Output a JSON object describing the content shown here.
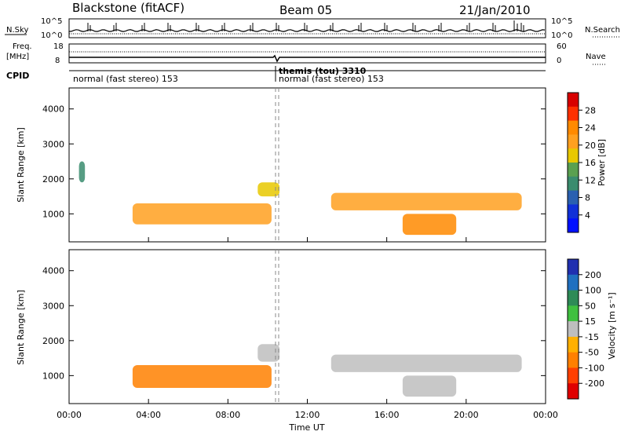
{
  "header": {
    "title": "Blackstone (fitACF)",
    "beam": "Beam 05",
    "date": "21/Jan/2010"
  },
  "top_panels": {
    "nsky_label": "N.Sky",
    "nsky_ticks": [
      "10^5",
      "10^0"
    ],
    "nsearch_label": "N.Search",
    "nsearch_ticks": [
      "10^5",
      "10^0"
    ],
    "freq_label_1": "Freq.",
    "freq_label_2": "[MHz]",
    "freq_ticks": [
      "18",
      "8"
    ],
    "nave_label": "Nave",
    "nave_ticks": [
      "60",
      "0"
    ],
    "cpid_label": "CPID",
    "cpid_left": "normal (fast stereo) 153",
    "cpid_mid_1": "themis (tou) 3310",
    "cpid_mid_2": "normal (fast stereo) 153"
  },
  "power_colorbar": {
    "label": "Power [dB]",
    "ticks": [
      "28",
      "24",
      "20",
      "16",
      "12",
      "8",
      "4"
    ],
    "colors": [
      "#d80000",
      "#ff3000",
      "#ff8a00",
      "#ffa020",
      "#e8c800",
      "#5aa050",
      "#3a8c6e",
      "#2a60b0",
      "#1030d8",
      "#0010ff"
    ]
  },
  "velocity_colorbar": {
    "label": "Velocity [m s⁻¹]",
    "ticks": [
      "200",
      "100",
      "50",
      "15",
      "-15",
      "-50",
      "-100",
      "-200"
    ],
    "colors": [
      "#2030b0",
      "#2070c0",
      "#2e8b57",
      "#40c040",
      "#bebebe",
      "#ffb000",
      "#ff8000",
      "#ff4000",
      "#e00000"
    ]
  },
  "chart_data": [
    {
      "type": "heatmap",
      "name": "Power",
      "ylabel": "Slant Range [km]",
      "yticks": [
        1000,
        2000,
        3000,
        4000
      ],
      "ylim": [
        200,
        4600
      ],
      "xlim": [
        0,
        24
      ],
      "regions": [
        {
          "x": [
            0.5,
            0.8
          ],
          "y": [
            1900,
            2500
          ],
          "value": 10
        },
        {
          "x": [
            3.2,
            10.2
          ],
          "y": [
            700,
            1300
          ],
          "value": 22
        },
        {
          "x": [
            9.5,
            10.6
          ],
          "y": [
            1500,
            1900
          ],
          "value": 18
        },
        {
          "x": [
            13.2,
            22.8
          ],
          "y": [
            1100,
            1600
          ],
          "value": 22
        },
        {
          "x": [
            16.8,
            19.5
          ],
          "y": [
            400,
            1000
          ],
          "value": 24
        }
      ]
    },
    {
      "type": "heatmap",
      "name": "Velocity",
      "xlabel": "Time UT",
      "ylabel": "Slant Range [km]",
      "xticks": [
        "00:00",
        "04:00",
        "08:00",
        "12:00",
        "16:00",
        "20:00",
        "00:00"
      ],
      "yticks": [
        1000,
        2000,
        3000,
        4000
      ],
      "ylim": [
        200,
        4600
      ],
      "xlim": [
        0,
        24
      ],
      "regions": [
        {
          "x": [
            3.2,
            10.2
          ],
          "y": [
            650,
            1300
          ],
          "value": -60
        },
        {
          "x": [
            9.5,
            10.6
          ],
          "y": [
            1400,
            1900
          ],
          "value": 0
        },
        {
          "x": [
            13.2,
            22.8
          ],
          "y": [
            1100,
            1600
          ],
          "value": 0
        },
        {
          "x": [
            16.8,
            19.5
          ],
          "y": [
            400,
            1000
          ],
          "value": 0
        }
      ]
    }
  ]
}
